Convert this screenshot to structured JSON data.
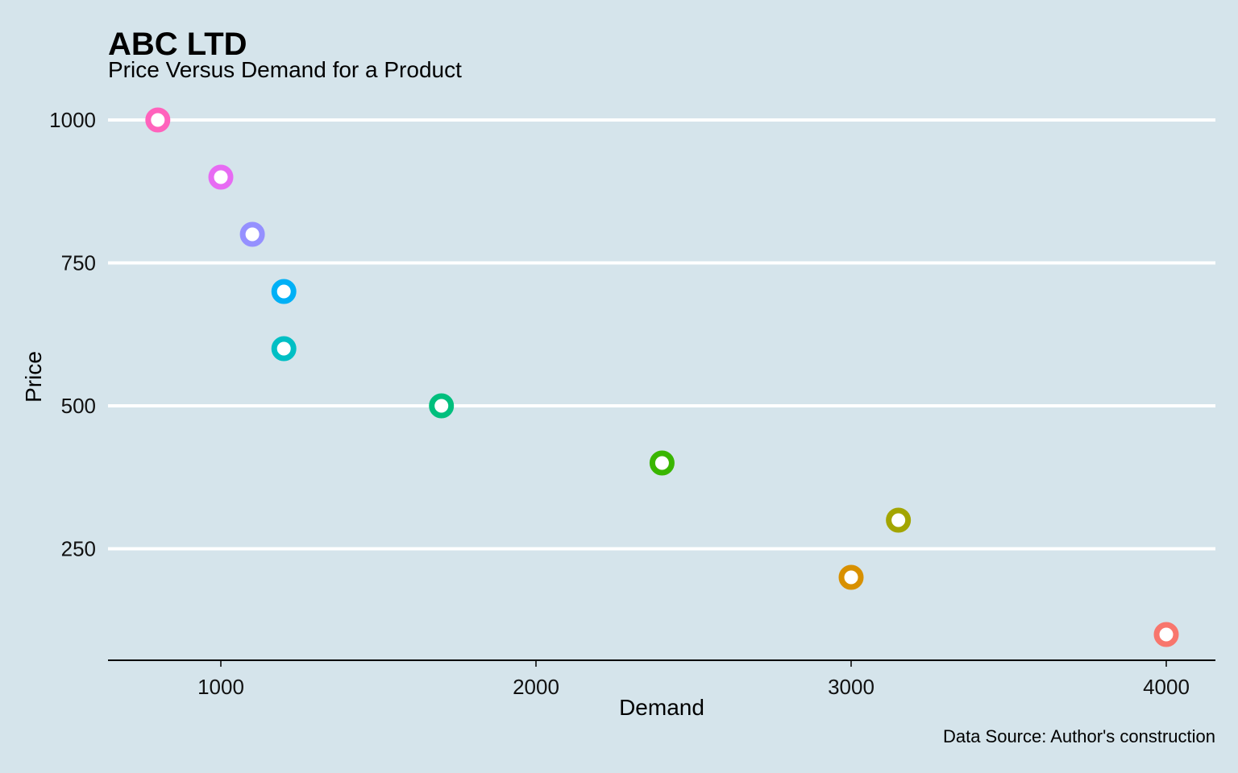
{
  "chart_data": {
    "type": "scatter",
    "title": "ABC LTD",
    "subtitle": "Price Versus Demand for a Product",
    "xlabel": "Demand",
    "ylabel": "Price",
    "caption": "Data Source: Author's construction",
    "xlim": [
      640,
      4160
    ],
    "ylim": [
      40,
      1050
    ],
    "x_ticks": [
      1000,
      2000,
      3000,
      4000
    ],
    "y_ticks": [
      250,
      500,
      750,
      1000
    ],
    "grid": "horizontal major lines only",
    "legend": "none",
    "points": [
      {
        "x": 4000,
        "y": 100,
        "color": "#f8766d"
      },
      {
        "x": 3000,
        "y": 200,
        "color": "#d89000"
      },
      {
        "x": 3150,
        "y": 300,
        "color": "#a3a500"
      },
      {
        "x": 2400,
        "y": 400,
        "color": "#39b600"
      },
      {
        "x": 1700,
        "y": 500,
        "color": "#00bf7d"
      },
      {
        "x": 1200,
        "y": 600,
        "color": "#00bfc4"
      },
      {
        "x": 1200,
        "y": 700,
        "color": "#00b0f6"
      },
      {
        "x": 1100,
        "y": 800,
        "color": "#9590ff"
      },
      {
        "x": 1000,
        "y": 900,
        "color": "#e76bf3"
      },
      {
        "x": 800,
        "y": 1000,
        "color": "#ff62bc"
      }
    ]
  },
  "colors": {
    "background": "#d5e4eb",
    "gridline": "#ffffff",
    "axis_line": "#000000"
  }
}
